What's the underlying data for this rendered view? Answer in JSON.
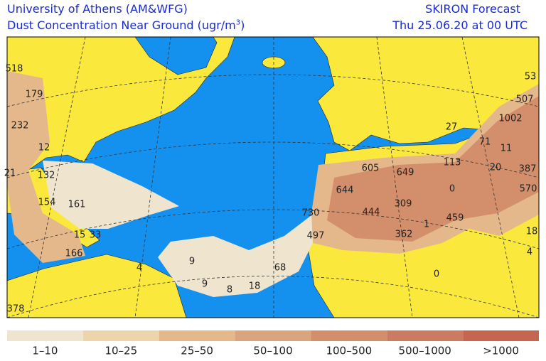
{
  "header": {
    "left_line1": "University of Athens (AM&WFG)",
    "left_line2": {
      "text": "Dust Concentration Near Ground (ugr/m",
      "superscript": "3",
      "close": ")"
    },
    "right_line1": "SKIRON Forecast",
    "right_line2": "Thu 25.06.20 at 00 UTC"
  },
  "map_labels": [
    "518",
    "179",
    "232",
    "12",
    "21",
    "132",
    "154",
    "161",
    "15",
    "33",
    "166",
    "4",
    "9",
    "9",
    "8",
    "18",
    "68",
    "378",
    "53",
    "507",
    "1002",
    "27",
    "71",
    "11",
    "20",
    "387",
    "570",
    "113",
    "605",
    "649",
    "644",
    "0",
    "444",
    "309",
    "730",
    "1",
    "459",
    "497",
    "362",
    "18",
    "4",
    "0"
  ],
  "legend": [
    {
      "label": "1–10",
      "color": "#efe5cf"
    },
    {
      "label": "10–25",
      "color": "#ecd4ab"
    },
    {
      "label": "25–50",
      "color": "#e5b88c"
    },
    {
      "label": "50–100",
      "color": "#d9a47e"
    },
    {
      "label": "100–500",
      "color": "#d38e6c"
    },
    {
      "label": "500–1000",
      "color": "#cc7b63"
    },
    {
      "label": ">1000",
      "color": "#c56651"
    }
  ]
}
